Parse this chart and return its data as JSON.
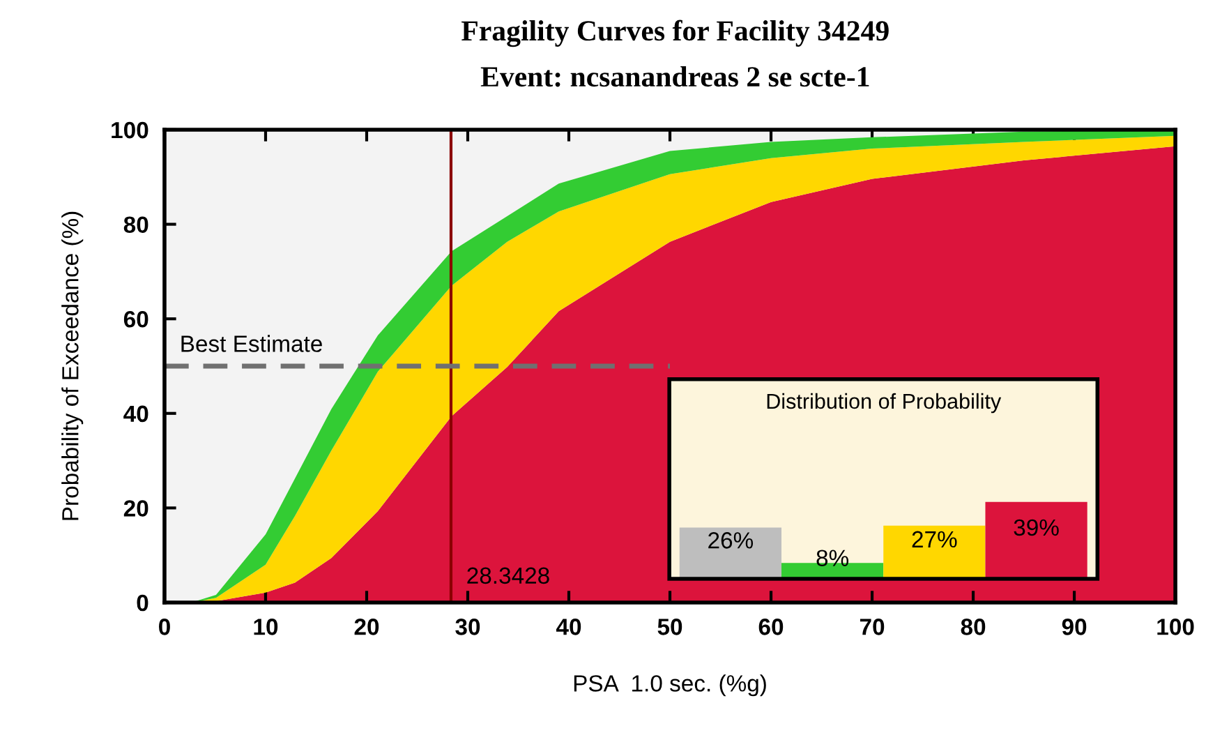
{
  "chart_data": [
    {
      "type": "area",
      "title": "Fragility Curves for Facility 34249",
      "subtitle": "Event: ncsanandreas 2 se scte-1",
      "xlabel": "PSA  1.0 sec. (%g)",
      "ylabel": "Probability of Exceedance (%)",
      "xlim": [
        0,
        100
      ],
      "ylim": [
        0,
        100
      ],
      "xticks": [
        0,
        10,
        20,
        30,
        40,
        50,
        60,
        70,
        80,
        90,
        100
      ],
      "yticks": [
        0,
        20,
        40,
        60,
        80,
        100
      ],
      "grid": false,
      "legend": false,
      "stacked": true,
      "ref_lines": [
        {
          "axis": "x",
          "value": 28.3428,
          "label": "28.3428",
          "color": "#8b0000"
        }
      ],
      "series": [
        {
          "color": "#dc143c",
          "x": [
            0,
            3,
            5.1,
            10,
            12.9,
            16.5,
            21.1,
            28.4,
            33.9,
            39,
            50,
            60,
            70,
            85,
            100
          ],
          "values": [
            0,
            0,
            0.3,
            2.1,
            4.2,
            9.4,
            19.3,
            39.4,
            49.8,
            61.6,
            76.3,
            84.7,
            89.6,
            93.5,
            96.5
          ]
        },
        {
          "color": "#ffd700",
          "x": [
            0,
            3,
            5.1,
            10,
            12.9,
            16.5,
            21.1,
            28.4,
            33.9,
            39,
            50,
            60,
            70,
            85,
            100
          ],
          "values": [
            0,
            0.1,
            0.7,
            5.9,
            14.1,
            22.7,
            29.5,
            27.6,
            26.5,
            21.1,
            14.3,
            9.3,
            6.4,
            3.9,
            2.2
          ]
        },
        {
          "color": "#33cc33",
          "x": [
            0,
            3,
            5.1,
            10,
            12.9,
            16.5,
            21.1,
            28.4,
            33.9,
            39,
            50,
            60,
            70,
            85,
            100
          ],
          "values": [
            0,
            0.1,
            0.6,
            6.4,
            7.9,
            8.8,
            7.7,
            7.3,
            5.4,
            5.9,
            4.9,
            3.4,
            2.4,
            2.2,
            1.3
          ]
        },
        {
          "type": "line",
          "name": "Best Estimate",
          "color": "#707070",
          "line_style": "dashed",
          "x": [
            0,
            50
          ],
          "values": [
            50,
            50
          ]
        }
      ]
    },
    {
      "type": "bar",
      "title": "Distribution of Probability",
      "categories": [
        null,
        null,
        null,
        null
      ],
      "values": [
        26,
        8,
        27,
        39
      ],
      "colors": [
        "#bebebe",
        "#33cc33",
        "#ffd700",
        "#dc143c"
      ],
      "value_labels": [
        "26%",
        "8%",
        "27%",
        "39%"
      ]
    }
  ]
}
